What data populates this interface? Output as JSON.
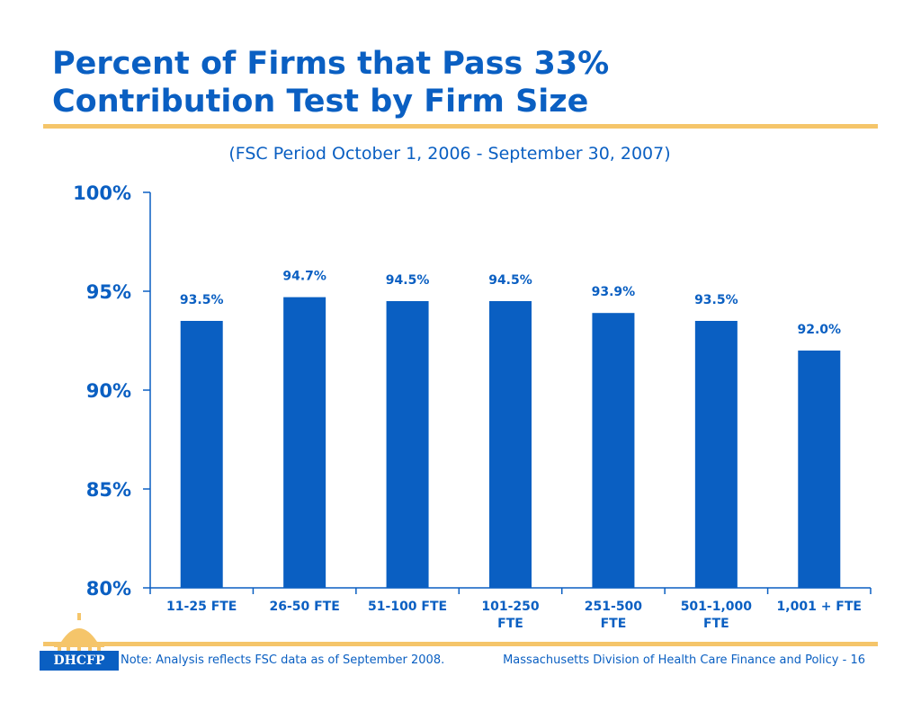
{
  "slide": {
    "title_line1": "Percent of Firms that Pass 33%",
    "title_line2": "Contribution Test by Firm Size",
    "subtitle": "(FSC Period October 1, 2006 - September 30, 2007)",
    "note": "Note: Analysis reflects FSC data as of September 2008.",
    "footer": "Massachusetts Division of Health Care Finance and Policy - 16",
    "logo_text": "DHCFP"
  },
  "colors": {
    "accent": "#0a5fc2",
    "bar": "#0a5fc2",
    "rule": "#f5c56a",
    "logo_gold": "#f5c56a"
  },
  "chart_data": {
    "type": "bar",
    "categories": [
      [
        "11-25 FTE"
      ],
      [
        "26-50 FTE"
      ],
      [
        "51-100 FTE"
      ],
      [
        "101-250",
        "FTE"
      ],
      [
        "251-500",
        "FTE"
      ],
      [
        "501-1,000",
        "FTE"
      ],
      [
        "1,001 + FTE"
      ]
    ],
    "values": [
      93.5,
      94.7,
      94.5,
      94.5,
      93.9,
      93.5,
      92.0
    ],
    "data_labels": [
      "93.5%",
      "94.7%",
      "94.5%",
      "94.5%",
      "93.9%",
      "93.5%",
      "92.0%"
    ],
    "ylim": [
      80,
      100
    ],
    "yticks": [
      80,
      85,
      90,
      95,
      100
    ],
    "ytick_labels": [
      "80%",
      "85%",
      "90%",
      "95%",
      "100%"
    ],
    "grid": false,
    "legend": "none"
  }
}
